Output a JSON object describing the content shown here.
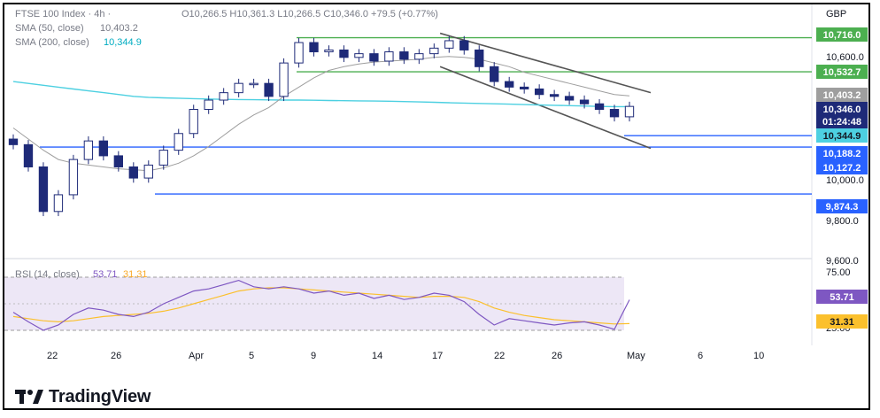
{
  "header": {
    "symbol": "FTSE 100 Index · 4h ·",
    "ohlc": "O10,266.5  H10,361.3  L10,266.5  C10,346.0  +79.5 (+0.77%)",
    "sma50_label": "SMA (50, close)",
    "sma50_value": "10,403.2",
    "sma200_label": "SMA (200, close)",
    "sma200_value": "10,344.9",
    "currency": "GBP"
  },
  "rsi_header": {
    "label": "RSI (14, close)",
    "value": "53.71",
    "ma_value": "31.31"
  },
  "price_axis": {
    "ticks": [
      "10,600.0",
      "10,000.0",
      "9,800.0",
      "9,600.0"
    ]
  },
  "rsi_axis": {
    "ticks": [
      "75.00",
      "25.00"
    ]
  },
  "price_tags": [
    {
      "text": "10,716.0",
      "bg": "#4caf50",
      "fg": "#ffffff"
    },
    {
      "text": "10,532.7",
      "bg": "#4caf50",
      "fg": "#ffffff"
    },
    {
      "text": "10,403.2",
      "bg": "#9e9e9e",
      "fg": "#ffffff"
    },
    {
      "text": "10,346.0",
      "bg": "#1e2a78",
      "fg": "#ffffff"
    },
    {
      "text": "01:24:48",
      "bg": "#1e2a78",
      "fg": "#ffffff"
    },
    {
      "text": "10,344.9",
      "bg": "#4dd0e1",
      "fg": "#131722"
    },
    {
      "text": "10,188.2",
      "bg": "#2962ff",
      "fg": "#ffffff"
    },
    {
      "text": "10,127.2",
      "bg": "#2962ff",
      "fg": "#ffffff"
    },
    {
      "text": "9,874.3",
      "bg": "#2962ff",
      "fg": "#ffffff"
    }
  ],
  "rsi_tags": [
    {
      "text": "53.71",
      "bg": "#7e57c2",
      "fg": "#ffffff"
    },
    {
      "text": "31.31",
      "bg": "#fbc02d",
      "fg": "#131722"
    }
  ],
  "time_axis": {
    "ticks": [
      "22",
      "26",
      "Apr",
      "5",
      "9",
      "14",
      "17",
      "22",
      "26",
      "May",
      "6",
      "10"
    ]
  },
  "brand": {
    "name": "TradingView"
  },
  "colors": {
    "bull_candle": "#1e2a78",
    "bear_candle": "#1e2a78",
    "sma50": "#9e9e9e",
    "sma200": "#4dd0e1",
    "resistance": "#4caf50",
    "support": "#2962ff",
    "channel": "#555555",
    "rsi_line": "#7e57c2",
    "rsi_ma": "#fbc02d",
    "rsi_band": "#ede7f6"
  },
  "chart_data": {
    "type": "candlestick",
    "timeframe": "4h",
    "x": [
      "Mar 20",
      "Mar 21",
      "Mar 22",
      "Mar 23",
      "Mar 24",
      "Mar 25",
      "Mar 26",
      "Mar 27",
      "Mar 28",
      "Mar 29",
      "Mar 30",
      "Mar 31",
      "Apr 1",
      "Apr 2",
      "Apr 3",
      "Apr 4",
      "Apr 5",
      "Apr 6",
      "Apr 7",
      "Apr 8",
      "Apr 9",
      "Apr 10",
      "Apr 11",
      "Apr 12",
      "Apr 13",
      "Apr 14",
      "Apr 15",
      "Apr 16",
      "Apr 17",
      "Apr 18",
      "Apr 19",
      "Apr 20",
      "Apr 21",
      "Apr 22",
      "Apr 23",
      "Apr 24",
      "Apr 25",
      "Apr 26",
      "Apr 27",
      "Apr 28",
      "Apr 29",
      "Apr 30"
    ],
    "close": [
      10140,
      10020,
      9780,
      9870,
      10060,
      10160,
      10080,
      10020,
      9960,
      10030,
      10110,
      10200,
      10330,
      10380,
      10420,
      10470,
      10470,
      10400,
      10580,
      10690,
      10640,
      10650,
      10610,
      10630,
      10590,
      10640,
      10600,
      10630,
      10660,
      10700,
      10650,
      10560,
      10480,
      10450,
      10440,
      10410,
      10400,
      10380,
      10360,
      10330,
      10290,
      10346
    ],
    "sma50": [
      10230,
      10170,
      10110,
      10060,
      10040,
      10030,
      10020,
      10010,
      10005,
      10000,
      10015,
      10040,
      10080,
      10130,
      10190,
      10250,
      10300,
      10340,
      10400,
      10450,
      10500,
      10540,
      10560,
      10575,
      10585,
      10590,
      10595,
      10600,
      10610,
      10615,
      10610,
      10600,
      10580,
      10560,
      10530,
      10510,
      10490,
      10470,
      10450,
      10430,
      10410,
      10403.2
    ],
    "sma200": [
      10480,
      10470,
      10460,
      10450,
      10440,
      10430,
      10420,
      10410,
      10400,
      10395,
      10392,
      10390,
      10388,
      10386,
      10384,
      10383,
      10382,
      10381,
      10380,
      10380,
      10379,
      10378,
      10377,
      10376,
      10375,
      10374,
      10372,
      10370,
      10368,
      10366,
      10364,
      10362,
      10360,
      10358,
      10356,
      10354,
      10352,
      10350,
      10348,
      10346,
      10345,
      10344.9
    ],
    "rsi": [
      42,
      33,
      25,
      30,
      40,
      46,
      44,
      40,
      38,
      42,
      50,
      56,
      62,
      64,
      68,
      72,
      66,
      64,
      66,
      64,
      60,
      62,
      58,
      60,
      55,
      58,
      54,
      56,
      60,
      58,
      52,
      40,
      30,
      36,
      34,
      32,
      30,
      32,
      33,
      30,
      26,
      53.71
    ],
    "rsi_ma": [
      38,
      36,
      34,
      33,
      34,
      36,
      38,
      39,
      40,
      41,
      43,
      46,
      50,
      54,
      58,
      62,
      64,
      65,
      65,
      64,
      63,
      62,
      61,
      60,
      59,
      58,
      57,
      56,
      57,
      57,
      56,
      52,
      46,
      42,
      39,
      37,
      35,
      34,
      33,
      32,
      31,
      31.31
    ],
    "levels": {
      "resistance": [
        10716.0,
        10532.7
      ],
      "support": [
        10188.2,
        10127.2,
        9874.3
      ]
    },
    "last": {
      "close": 10346.0,
      "countdown": "01:24:48"
    },
    "ylim": [
      9550,
      10800
    ],
    "rsi_levels": [
      75,
      25
    ],
    "rsi_ylim": [
      15,
      85
    ],
    "title": "FTSE 100 Index · 4h ·",
    "xlabel": "",
    "ylabel": ""
  }
}
